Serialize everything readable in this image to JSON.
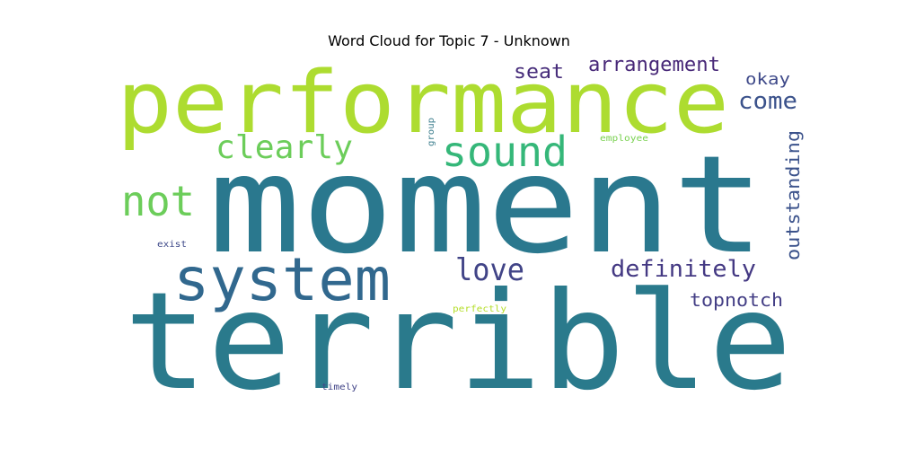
{
  "title": "Word Cloud for Topic 7 - Unknown",
  "words": {
    "terrible": {
      "text": "terrible",
      "color": "#2a7a8c"
    },
    "moment": {
      "text": "moment",
      "color": "#2a788e"
    },
    "performance": {
      "text": "performance",
      "color": "#addc30"
    },
    "system": {
      "text": "system",
      "color": "#31688e"
    },
    "sound": {
      "text": "sound",
      "color": "#35b779"
    },
    "clearly": {
      "text": "clearly",
      "color": "#6ccd5a"
    },
    "not": {
      "text": "not",
      "color": "#6ccd5a"
    },
    "love": {
      "text": "love",
      "color": "#414487"
    },
    "definitely": {
      "text": "definitely",
      "color": "#443983"
    },
    "arrangement": {
      "text": "arrangement",
      "color": "#482878"
    },
    "seat": {
      "text": "seat",
      "color": "#472d7b"
    },
    "come": {
      "text": "come",
      "color": "#3b528b"
    },
    "okay": {
      "text": "okay",
      "color": "#3e4989"
    },
    "outstanding": {
      "text": "outstanding",
      "color": "#3b528b"
    },
    "topnotch": {
      "text": "topnotch",
      "color": "#433e85"
    },
    "group": {
      "text": "group",
      "color": "#3e7f8e"
    },
    "employee": {
      "text": "employee",
      "color": "#7ad151"
    },
    "exist": {
      "text": "exist",
      "color": "#3e4989"
    },
    "perfectly": {
      "text": "perfectly",
      "color": "#b5de2b"
    },
    "timely": {
      "text": "timely",
      "color": "#414487"
    }
  }
}
